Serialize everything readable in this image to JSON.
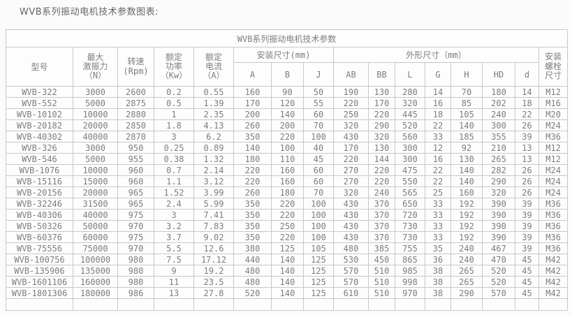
{
  "page": {
    "heading": "WVB系列振动电机技术参数图表:"
  },
  "colors": {
    "page_background": "#fbfbfb",
    "cell_background": "#fdfdfd",
    "border": "#c8c8c8",
    "table_text": "#7d7d7d",
    "heading_text": "#666666"
  },
  "table": {
    "title": "WVB系列振动电机技术参数",
    "headers": {
      "model": "型号",
      "max_force": "最大\n激振力\n（N）",
      "speed": "转速\n(Rpm)",
      "rated_power": "额定\n功率\n（Kw）",
      "rated_current": "额定\n电流\n（A）",
      "install_dims_group": "安装尺寸(mm)",
      "outline_dims_group": "外形尺寸（mm）",
      "bolt_size": "安装螺栓尺寸",
      "sub": [
        "A",
        "B",
        "J",
        "AB",
        "BB",
        "L",
        "G",
        "H",
        "HD",
        "d"
      ]
    },
    "rows": [
      [
        "WVB-322",
        "3000",
        "2600",
        "0.2",
        "0.55",
        "160",
        "90",
        "50",
        "190",
        "130",
        "280",
        "14",
        "70",
        "180",
        "14",
        "M12"
      ],
      [
        "WVB-552",
        "5000",
        "2875",
        "0.5",
        "1.39",
        "170",
        "120",
        "55",
        "220",
        "170",
        "320",
        "16",
        "85",
        "202",
        "18",
        "M16"
      ],
      [
        "WVB-10102",
        "10000",
        "2880",
        "1",
        "2.35",
        "200",
        "140",
        "60",
        "250",
        "220",
        "445",
        "18",
        "105",
        "240",
        "22",
        "M20"
      ],
      [
        "WVB-20182",
        "20000",
        "2850",
        "1.8",
        "4.13",
        "260",
        "200",
        "70",
        "320",
        "290",
        "520",
        "22",
        "140",
        "300",
        "26",
        "M24"
      ],
      [
        "WVB-40302",
        "40000",
        "2870",
        "3",
        "6.2",
        "350",
        "220",
        "100",
        "430",
        "320",
        "560",
        "33",
        "185",
        "355",
        "39",
        "M36"
      ],
      [
        "WVB-326",
        "3000",
        "950",
        "0.25",
        "0.89",
        "140",
        "100",
        "40",
        "170",
        "130",
        "300",
        "12",
        "92",
        "210",
        "13",
        "M12"
      ],
      [
        "WVB-546",
        "5000",
        "955",
        "0.38",
        "1.32",
        "180",
        "110",
        "45",
        "220",
        "144",
        "300",
        "16",
        "130",
        "265",
        "13",
        "M12"
      ],
      [
        "WVB-1076",
        "10000",
        "960",
        "0.7",
        "2.14",
        "220",
        "160",
        "60",
        "270",
        "220",
        "475",
        "22",
        "140",
        "282",
        "26",
        "M24"
      ],
      [
        "WVB-15116",
        "15000",
        "960",
        "1.1",
        "3.12",
        "220",
        "160",
        "60",
        "270",
        "220",
        "550",
        "22",
        "140",
        "290",
        "26",
        "M24"
      ],
      [
        "WVB-20156",
        "20000",
        "965",
        "1.52",
        "3.99",
        "260",
        "180",
        "70",
        "320",
        "240",
        "565",
        "25",
        "160",
        "320",
        "26",
        "M24"
      ],
      [
        "WVB-32246",
        "31500",
        "965",
        "2.4",
        "5.99",
        "350",
        "220",
        "100",
        "430",
        "370",
        "650",
        "33",
        "192",
        "390",
        "39",
        "M36"
      ],
      [
        "WVB-40306",
        "40000",
        "975",
        "3",
        "7.41",
        "350",
        "220",
        "100",
        "430",
        "370",
        "720",
        "33",
        "192",
        "390",
        "39",
        "M36"
      ],
      [
        "WVB-50326",
        "50000",
        "970",
        "3.2",
        "7.83",
        "350",
        "250",
        "100",
        "430",
        "370",
        "730",
        "33",
        "192",
        "390",
        "39",
        "M36"
      ],
      [
        "WVB-60376",
        "60000",
        "975",
        "3.7",
        "9.02",
        "350",
        "220",
        "100",
        "430",
        "370",
        "730",
        "33",
        "192",
        "390",
        "39",
        "M36"
      ],
      [
        "WVB-75556",
        "75000",
        "970",
        "5.5",
        "12.6",
        "380",
        "125",
        "105",
        "480",
        "385",
        "755",
        "35",
        "240",
        "467",
        "39",
        "M36"
      ],
      [
        "WVB-100756",
        "100000",
        "980",
        "7.5",
        "17.12",
        "440",
        "140",
        "125",
        "530",
        "450",
        "865",
        "36",
        "240",
        "470",
        "45",
        "M42"
      ],
      [
        "WVB-135906",
        "135000",
        "980",
        "9",
        "19.2",
        "480",
        "140",
        "125",
        "570",
        "510",
        "985",
        "38",
        "265",
        "520",
        "45",
        "M42"
      ],
      [
        "WVB-1601106",
        "160000",
        "980",
        "11",
        "23.5",
        "480",
        "140",
        "125",
        "570",
        "510",
        "998",
        "38",
        "265",
        "520",
        "45",
        "M42"
      ],
      [
        "WVB-1801306",
        "180000",
        "986",
        "13",
        "27.8",
        "520",
        "140",
        "125",
        "610",
        "510",
        "970",
        "38",
        "290",
        "570",
        "45",
        "M42"
      ]
    ]
  }
}
